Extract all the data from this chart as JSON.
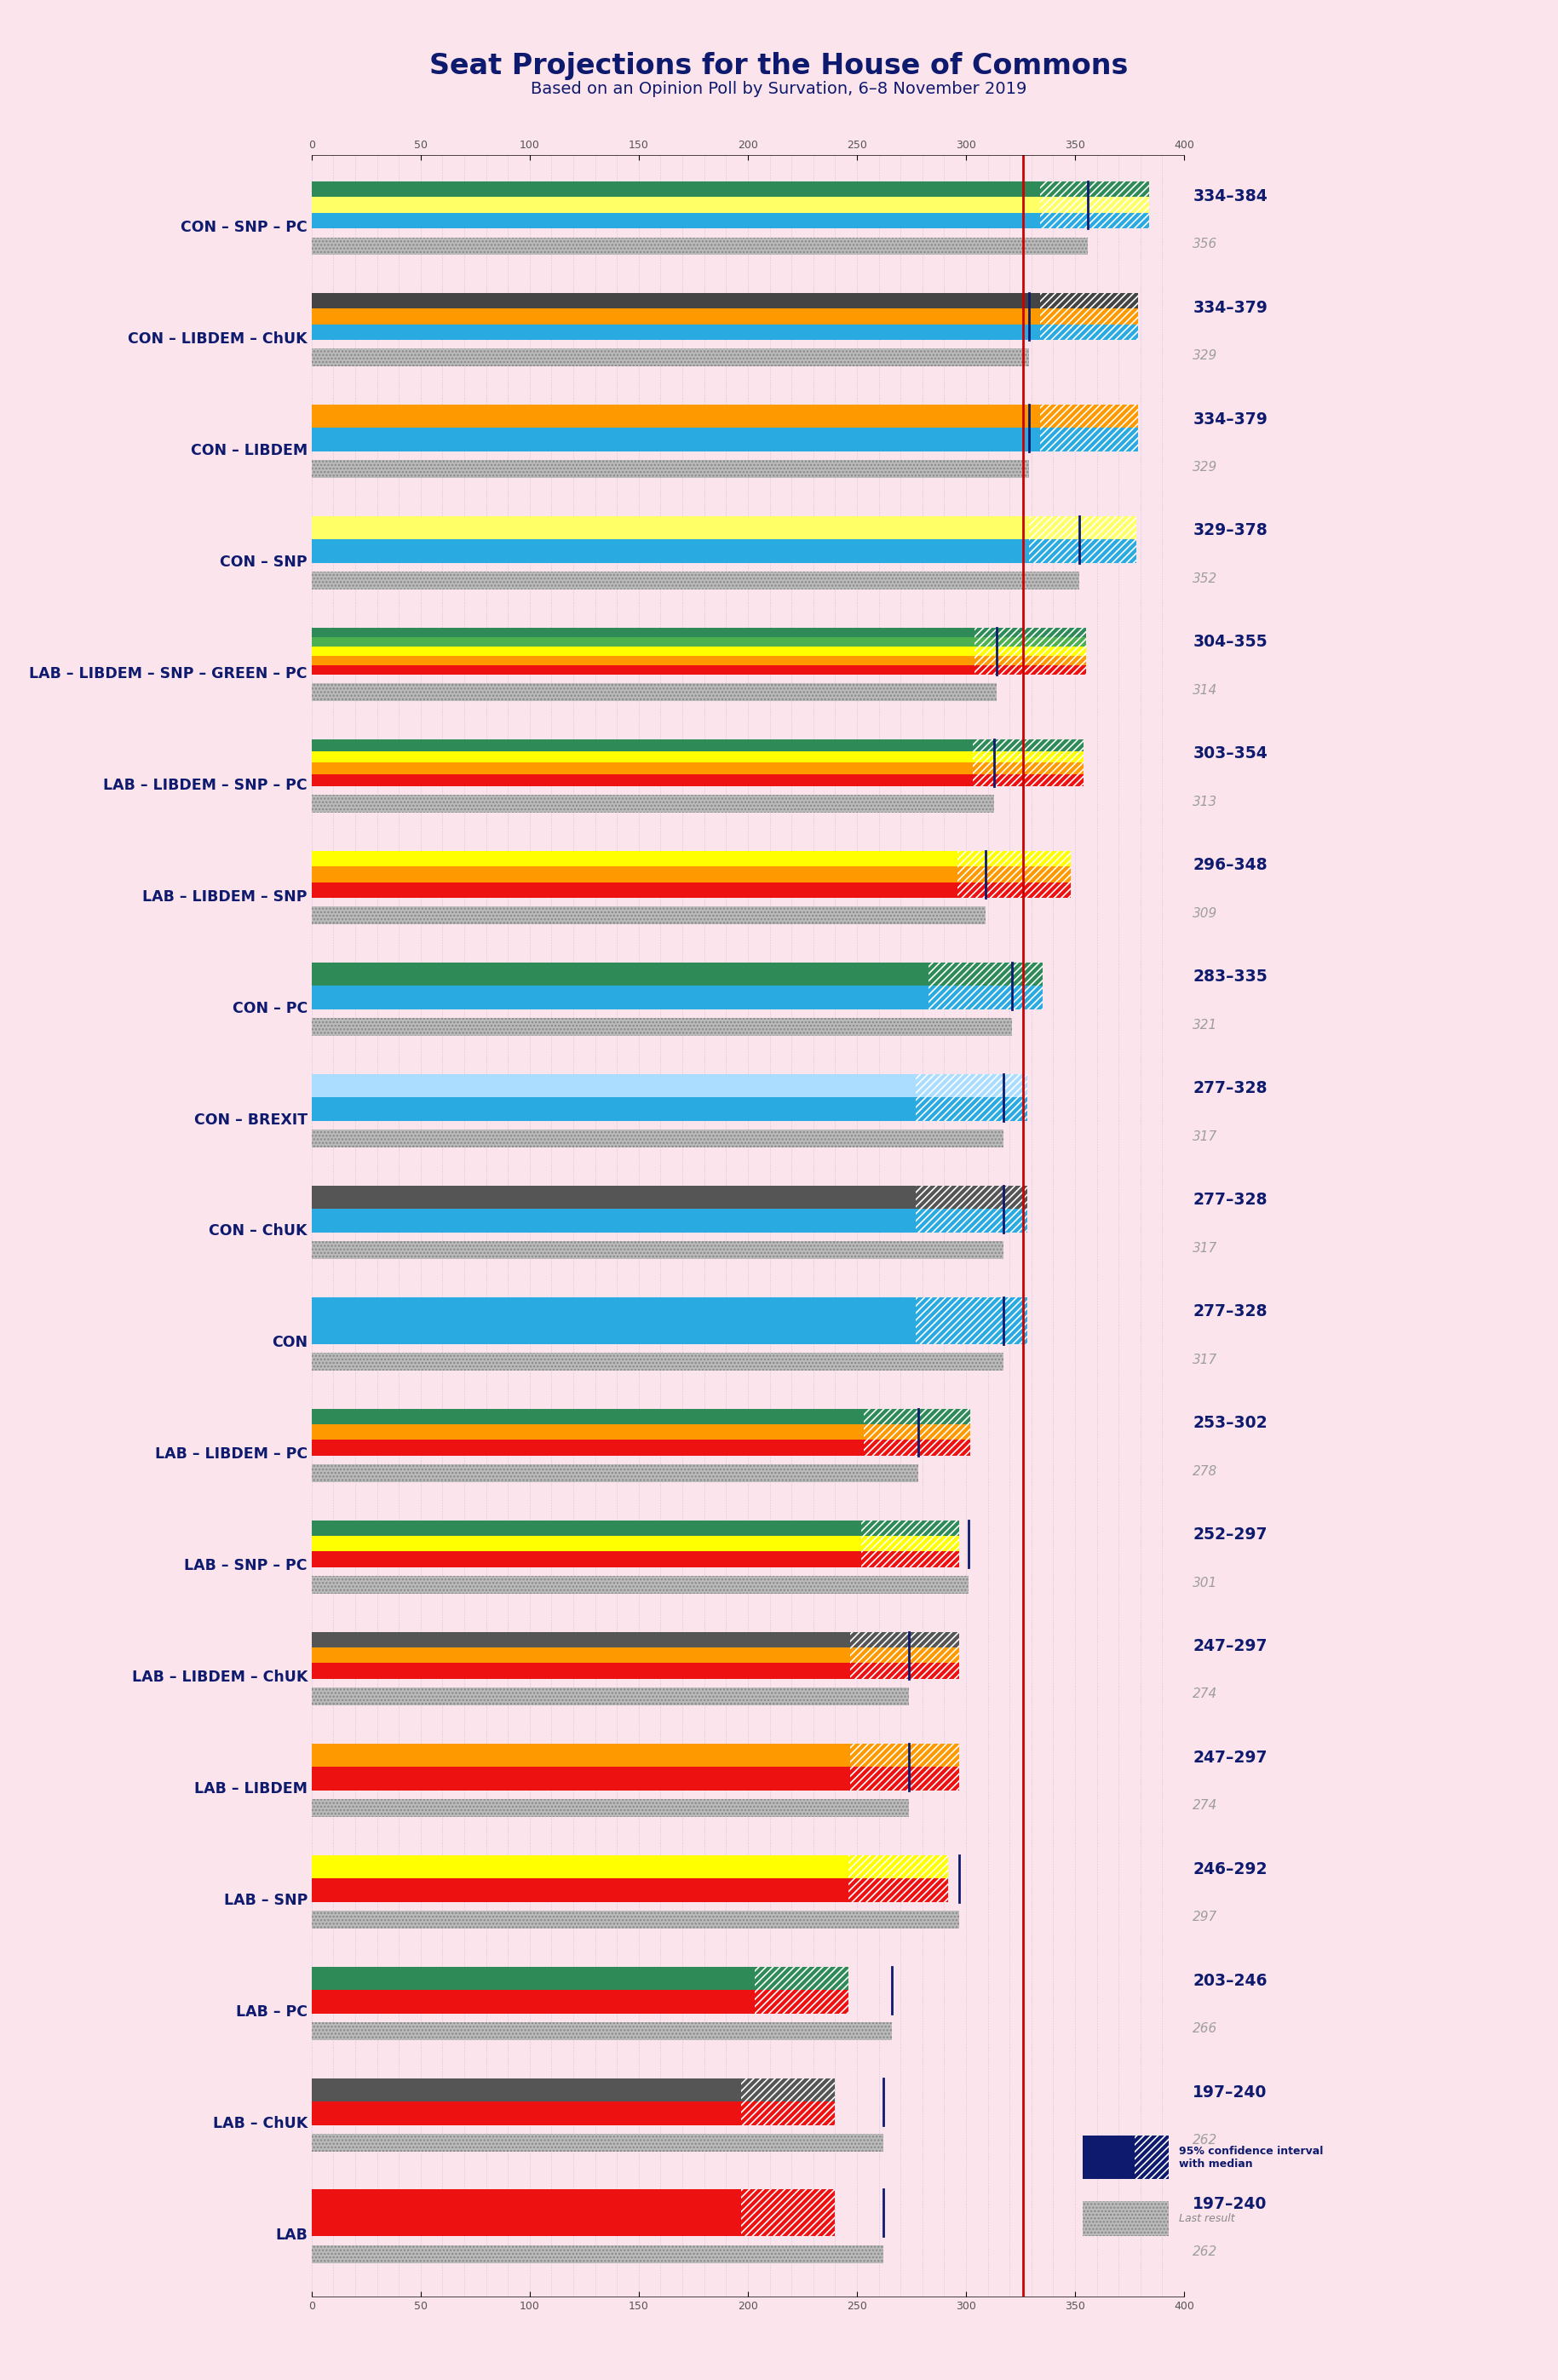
{
  "title": "Seat Projections for the House of Commons",
  "subtitle": "Based on an Opinion Poll by Survation, 6–8 November 2019",
  "background_color": "#fce4ec",
  "title_color": "#0d1a6e",
  "label_color": "#0d1a6e",
  "coalitions": [
    {
      "name": "CON – SNP – PC",
      "range": "334–384",
      "median": 356,
      "last": 356,
      "ci_low": 334,
      "ci_high": 384,
      "stripes": [
        "#29abe2",
        "#ffff66",
        "#2e8b57"
      ],
      "last_stripes": [
        "#aaaaaa",
        "#aaaaaa",
        "#aaaaaa"
      ]
    },
    {
      "name": "CON – LIBDEM – ChUK",
      "range": "334–379",
      "median": 329,
      "last": 329,
      "ci_low": 334,
      "ci_high": 379,
      "stripes": [
        "#29abe2",
        "#ff9900",
        "#444444"
      ],
      "last_stripes": [
        "#aaaaaa",
        "#aaaaaa",
        "#aaaaaa"
      ]
    },
    {
      "name": "CON – LIBDEM",
      "range": "334–379",
      "median": 329,
      "last": 329,
      "ci_low": 334,
      "ci_high": 379,
      "stripes": [
        "#29abe2",
        "#ff9900"
      ],
      "last_stripes": [
        "#aaaaaa",
        "#aaaaaa"
      ]
    },
    {
      "name": "CON – SNP",
      "range": "329–378",
      "median": 352,
      "last": 352,
      "ci_low": 329,
      "ci_high": 378,
      "stripes": [
        "#29abe2",
        "#ffff66"
      ],
      "last_stripes": [
        "#aaaaaa",
        "#aaaaaa"
      ]
    },
    {
      "name": "LAB – LIBDEM – SNP – GREEN – PC",
      "range": "304–355",
      "median": 314,
      "last": 314,
      "ci_low": 304,
      "ci_high": 355,
      "stripes": [
        "#ee1111",
        "#ff9900",
        "#ffff00",
        "#4caf50",
        "#2e8b57"
      ],
      "last_stripes": [
        "#aaaaaa",
        "#aaaaaa",
        "#aaaaaa",
        "#aaaaaa",
        "#aaaaaa"
      ]
    },
    {
      "name": "LAB – LIBDEM – SNP – PC",
      "range": "303–354",
      "median": 313,
      "last": 313,
      "ci_low": 303,
      "ci_high": 354,
      "stripes": [
        "#ee1111",
        "#ff9900",
        "#ffff00",
        "#2e8b57"
      ],
      "last_stripes": [
        "#aaaaaa",
        "#aaaaaa",
        "#aaaaaa",
        "#aaaaaa"
      ]
    },
    {
      "name": "LAB – LIBDEM – SNP",
      "range": "296–348",
      "median": 309,
      "last": 309,
      "ci_low": 296,
      "ci_high": 348,
      "stripes": [
        "#ee1111",
        "#ff9900",
        "#ffff00"
      ],
      "last_stripes": [
        "#aaaaaa",
        "#aaaaaa",
        "#aaaaaa"
      ]
    },
    {
      "name": "CON – PC",
      "range": "283–335",
      "median": 321,
      "last": 321,
      "ci_low": 283,
      "ci_high": 335,
      "stripes": [
        "#29abe2",
        "#2e8b57"
      ],
      "last_stripes": [
        "#aaaaaa",
        "#aaaaaa"
      ]
    },
    {
      "name": "CON – BREXIT",
      "range": "277–328",
      "median": 317,
      "last": 317,
      "ci_low": 277,
      "ci_high": 328,
      "stripes": [
        "#29abe2",
        "#aaddff"
      ],
      "last_stripes": [
        "#aaaaaa",
        "#aaaaaa"
      ]
    },
    {
      "name": "CON – ChUK",
      "range": "277–328",
      "median": 317,
      "last": 317,
      "ci_low": 277,
      "ci_high": 328,
      "stripes": [
        "#29abe2",
        "#555555"
      ],
      "last_stripes": [
        "#aaaaaa",
        "#aaaaaa"
      ]
    },
    {
      "name": "CON",
      "range": "277–328",
      "median": 317,
      "last": 317,
      "ci_low": 277,
      "ci_high": 328,
      "stripes": [
        "#29abe2"
      ],
      "last_stripes": [
        "#aaaaaa"
      ]
    },
    {
      "name": "LAB – LIBDEM – PC",
      "range": "253–302",
      "median": 278,
      "last": 278,
      "ci_low": 253,
      "ci_high": 302,
      "stripes": [
        "#ee1111",
        "#ff9900",
        "#2e8b57"
      ],
      "last_stripes": [
        "#aaaaaa",
        "#aaaaaa",
        "#aaaaaa"
      ]
    },
    {
      "name": "LAB – SNP – PC",
      "range": "252–297",
      "median": 301,
      "last": 301,
      "ci_low": 252,
      "ci_high": 297,
      "stripes": [
        "#ee1111",
        "#ffff00",
        "#2e8b57"
      ],
      "last_stripes": [
        "#aaaaaa",
        "#aaaaaa",
        "#aaaaaa"
      ]
    },
    {
      "name": "LAB – LIBDEM – ChUK",
      "range": "247–297",
      "median": 274,
      "last": 274,
      "ci_low": 247,
      "ci_high": 297,
      "stripes": [
        "#ee1111",
        "#ff9900",
        "#555555"
      ],
      "last_stripes": [
        "#aaaaaa",
        "#aaaaaa",
        "#aaaaaa"
      ]
    },
    {
      "name": "LAB – LIBDEM",
      "range": "247–297",
      "median": 274,
      "last": 274,
      "ci_low": 247,
      "ci_high": 297,
      "stripes": [
        "#ee1111",
        "#ff9900"
      ],
      "last_stripes": [
        "#aaaaaa",
        "#aaaaaa"
      ]
    },
    {
      "name": "LAB – SNP",
      "range": "246–292",
      "median": 297,
      "last": 297,
      "ci_low": 246,
      "ci_high": 292,
      "stripes": [
        "#ee1111",
        "#ffff00"
      ],
      "last_stripes": [
        "#aaaaaa",
        "#aaaaaa"
      ]
    },
    {
      "name": "LAB – PC",
      "range": "203–246",
      "median": 266,
      "last": 266,
      "ci_low": 203,
      "ci_high": 246,
      "stripes": [
        "#ee1111",
        "#2e8b57"
      ],
      "last_stripes": [
        "#aaaaaa",
        "#aaaaaa"
      ]
    },
    {
      "name": "LAB – ChUK",
      "range": "197–240",
      "median": 262,
      "last": 262,
      "ci_low": 197,
      "ci_high": 240,
      "stripes": [
        "#ee1111",
        "#555555"
      ],
      "last_stripes": [
        "#aaaaaa",
        "#aaaaaa"
      ]
    },
    {
      "name": "LAB",
      "range": "197–240",
      "median": 262,
      "last": 262,
      "ci_low": 197,
      "ci_high": 240,
      "stripes": [
        "#ee1111"
      ],
      "last_stripes": [
        "#aaaaaa"
      ]
    }
  ],
  "x_min": 0,
  "x_max": 400,
  "x_ticks": [
    0,
    50,
    100,
    150,
    200,
    250,
    300,
    350,
    400
  ],
  "majority_line": 326,
  "range_color": "#0d1a6e",
  "median_color": "#9e9e9e"
}
